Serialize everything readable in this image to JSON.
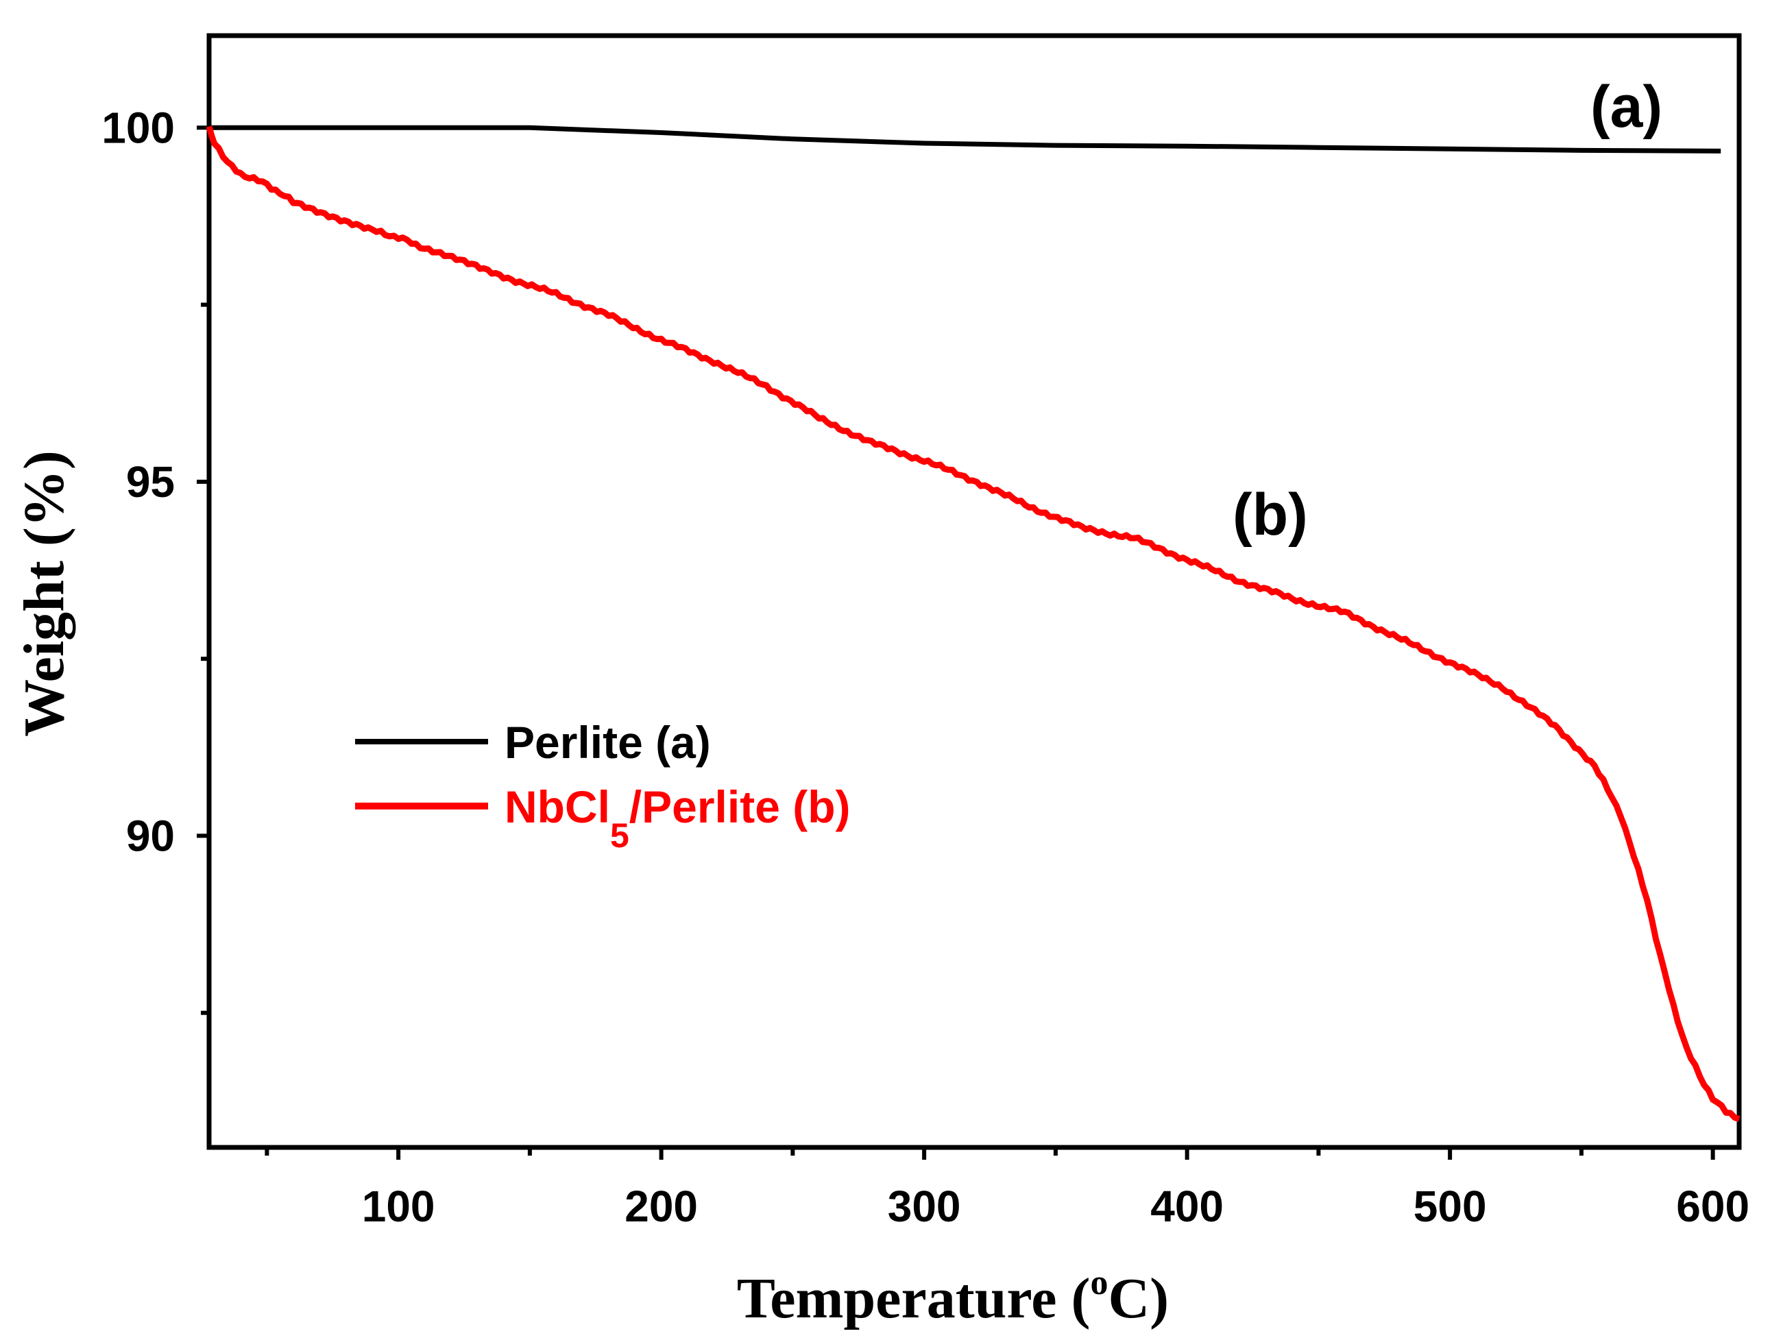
{
  "chart_data": {
    "type": "line",
    "xlabel": "Temperature (",
    "xlabel_sup": "o",
    "xlabel_end": "C)",
    "ylabel": "Weight (%)",
    "xlim": [
      28,
      610
    ],
    "ylim": [
      85.6,
      101.3
    ],
    "x_ticks": [
      100,
      200,
      300,
      400,
      500,
      600
    ],
    "x_tick_labels": [
      "100",
      "200",
      "300",
      "400",
      "500",
      "600"
    ],
    "x_minor_ticks": [
      50,
      150,
      250,
      350,
      450,
      550
    ],
    "y_ticks": [
      90,
      95,
      100
    ],
    "y_tick_labels": [
      "90",
      "95",
      "100"
    ],
    "y_minor_ticks": [
      87.5,
      92.5,
      97.5
    ],
    "colors": {
      "a": "#000000",
      "b": "#ff0000"
    },
    "series": [
      {
        "name": "Perlite (a)",
        "color": "#000000",
        "x": [
          28,
          100,
          150,
          200,
          250,
          300,
          350,
          400,
          450,
          500,
          550,
          603
        ],
        "y": [
          100.0,
          100.0,
          100.0,
          99.93,
          99.84,
          99.78,
          99.75,
          99.74,
          99.72,
          99.7,
          99.68,
          99.67
        ]
      },
      {
        "name": "NbCl5/Perlite (b)",
        "color": "#ff0000",
        "x": [
          28,
          30,
          35,
          40,
          50,
          60,
          75,
          90,
          100,
          110,
          125,
          140,
          160,
          180,
          200,
          220,
          240,
          260,
          280,
          300,
          320,
          340,
          360,
          380,
          400,
          420,
          440,
          460,
          480,
          500,
          520,
          540,
          555,
          565,
          575,
          580,
          585,
          590,
          595,
          600,
          605,
          610
        ],
        "y": [
          100.0,
          99.8,
          99.5,
          99.35,
          99.2,
          98.95,
          98.75,
          98.55,
          98.45,
          98.3,
          98.1,
          97.9,
          97.65,
          97.35,
          97.0,
          96.7,
          96.35,
          95.9,
          95.55,
          95.3,
          95.0,
          94.65,
          94.35,
          94.2,
          93.9,
          93.6,
          93.35,
          93.15,
          92.8,
          92.45,
          92.1,
          91.55,
          91.0,
          90.3,
          89.1,
          88.3,
          87.6,
          87.0,
          86.6,
          86.3,
          86.1,
          86.0
        ]
      }
    ],
    "legend": {
      "position": "center-left",
      "entries": [
        "Perlite (a)",
        "NbCl5/Perlite (b)"
      ],
      "b_prefix": "NbCl",
      "b_sub": "5",
      "b_suffix": "/Perlite (b)"
    },
    "annotations": [
      "(a)",
      "(b)"
    ]
  }
}
